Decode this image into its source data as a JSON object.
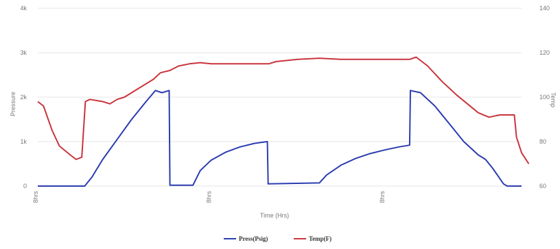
{
  "chart_data": {
    "type": "line",
    "title": "",
    "xlabel": "Time (Hrs)",
    "ylabel_left": "Pressure",
    "ylabel_right": "Temp",
    "x_tick_labels": [
      "8hrs",
      "8hrs",
      "8hrs"
    ],
    "x_tick_positions": [
      0,
      24,
      48
    ],
    "xlim": [
      0,
      67
    ],
    "ylim_left": [
      0,
      4000
    ],
    "ylim_right": [
      60,
      140
    ],
    "y_left_ticks": [
      "0",
      "1k",
      "2k",
      "3k",
      "4k"
    ],
    "y_right_ticks": [
      "60",
      "80",
      "100",
      "120",
      "140"
    ],
    "grid": true,
    "legend": "bottom",
    "series": [
      {
        "name": "Press(Psig)",
        "axis": "left",
        "color": "#2b3cb0",
        "points": [
          [
            0,
            0
          ],
          [
            6.5,
            0
          ],
          [
            7.5,
            200
          ],
          [
            9,
            600
          ],
          [
            11,
            1050
          ],
          [
            13,
            1500
          ],
          [
            15,
            1900
          ],
          [
            16.3,
            2150
          ],
          [
            17.2,
            2100
          ],
          [
            18.2,
            2150
          ],
          [
            18.3,
            20
          ],
          [
            21.5,
            20
          ],
          [
            22.5,
            350
          ],
          [
            24,
            580
          ],
          [
            26,
            760
          ],
          [
            28,
            880
          ],
          [
            30,
            960
          ],
          [
            31.8,
            1000
          ],
          [
            31.9,
            50
          ],
          [
            39,
            70
          ],
          [
            40,
            250
          ],
          [
            42,
            470
          ],
          [
            44,
            620
          ],
          [
            46,
            730
          ],
          [
            48,
            810
          ],
          [
            50,
            880
          ],
          [
            51.5,
            920
          ],
          [
            51.6,
            2150
          ],
          [
            53,
            2100
          ],
          [
            55,
            1800
          ],
          [
            57,
            1400
          ],
          [
            59,
            1000
          ],
          [
            61,
            700
          ],
          [
            62,
            600
          ],
          [
            63,
            400
          ],
          [
            64.5,
            50
          ],
          [
            65,
            0
          ],
          [
            67,
            0
          ]
        ]
      },
      {
        "name": "Temp(F)",
        "axis": "right",
        "color": "#c9343c",
        "points": [
          [
            0,
            98
          ],
          [
            0.8,
            96
          ],
          [
            2,
            85
          ],
          [
            3,
            78
          ],
          [
            4.5,
            74
          ],
          [
            5.3,
            72
          ],
          [
            6.1,
            73
          ],
          [
            6.6,
            98
          ],
          [
            7.2,
            99
          ],
          [
            9,
            98
          ],
          [
            10,
            97
          ],
          [
            11,
            99
          ],
          [
            12,
            100
          ],
          [
            14,
            104
          ],
          [
            16,
            108
          ],
          [
            17,
            111
          ],
          [
            18.3,
            112
          ],
          [
            19.5,
            114
          ],
          [
            21,
            115
          ],
          [
            22.5,
            115.5
          ],
          [
            24,
            115
          ],
          [
            28,
            115
          ],
          [
            32,
            115
          ],
          [
            33,
            116
          ],
          [
            36,
            117
          ],
          [
            39,
            117.5
          ],
          [
            42,
            117
          ],
          [
            46,
            117
          ],
          [
            50,
            117
          ],
          [
            51.5,
            117
          ],
          [
            52.4,
            118
          ],
          [
            54,
            114
          ],
          [
            56,
            107
          ],
          [
            58,
            101
          ],
          [
            59.5,
            97
          ],
          [
            61,
            93
          ],
          [
            62.5,
            91
          ],
          [
            64,
            92
          ],
          [
            66,
            92
          ],
          [
            66.3,
            82
          ],
          [
            67,
            75
          ],
          [
            68,
            70
          ]
        ]
      }
    ]
  }
}
